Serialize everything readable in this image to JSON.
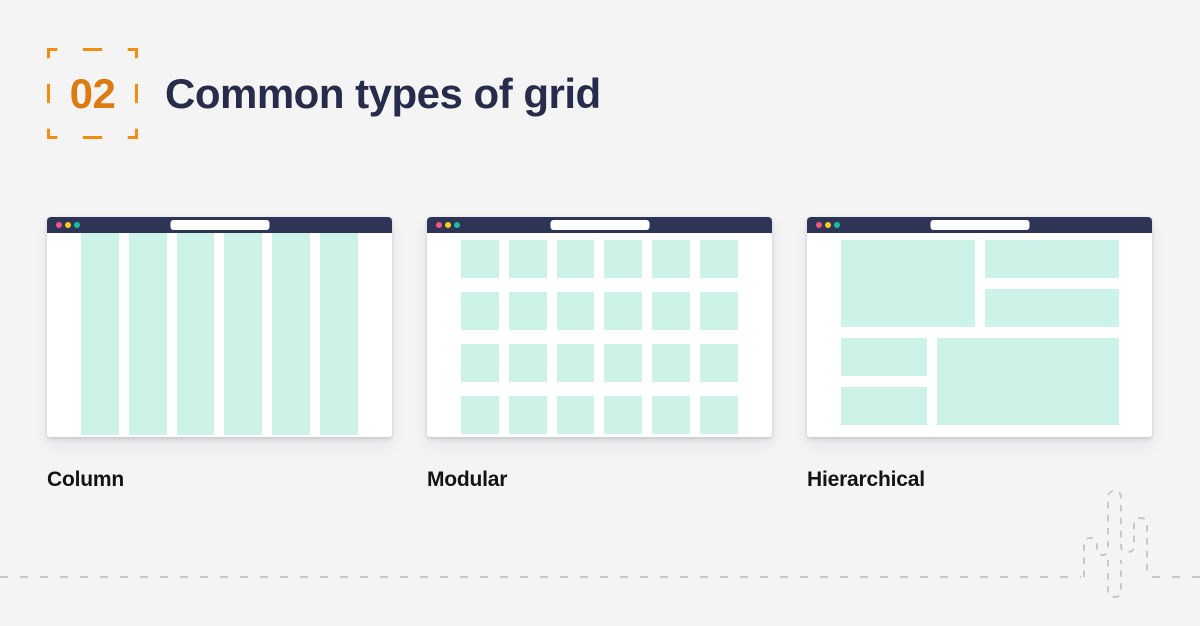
{
  "header": {
    "number": "02",
    "title": "Common types of grid"
  },
  "colors": {
    "background": "#F4F4F5",
    "accent-orange": "#EF8E10",
    "number-orange": "#DC7B10",
    "title-navy": "#262C49",
    "chrome-navy": "#2E3456",
    "mint": "#CDF2E7",
    "dot-pink": "#F2557E",
    "dot-yellow": "#FFCD1E",
    "dot-teal": "#17BFA0",
    "label-black": "#131313",
    "dash-gray": "#C7C8CA"
  },
  "cards": [
    {
      "label": "Column",
      "type": "column",
      "columns": 6
    },
    {
      "label": "Modular",
      "type": "modular",
      "columns": 6,
      "rows": 4,
      "cells": 24
    },
    {
      "label": "Hierarchical",
      "type": "hierarchical",
      "blocks": [
        "large-top-left",
        "wide-top-right-1",
        "wide-top-right-2",
        "small-bottom-left-1",
        "small-bottom-left-2",
        "large-bottom-right"
      ]
    }
  ],
  "decor": {
    "ground-line": "dashed-horizontal-line",
    "cactus": "dashed-cactus-outline"
  }
}
